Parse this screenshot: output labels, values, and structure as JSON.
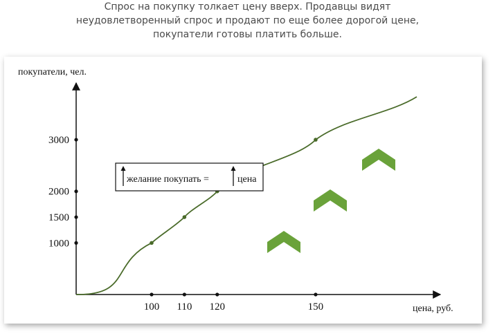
{
  "caption": {
    "line1": "Спрос на покупку толкает цену вверх. Продавцы видят",
    "line2": "неудовлетворенный спрос и продают по еще более дорогой цене,",
    "line3": "покупатели готовы платить больше."
  },
  "chart_data": {
    "type": "line",
    "ylabel": "покупатели, чел.",
    "xlabel": "цена, руб.",
    "x_ticks": [
      100,
      110,
      120,
      150
    ],
    "y_ticks": [
      1000,
      1500,
      2000,
      3000
    ],
    "xlim": [
      77,
      188
    ],
    "ylim": [
      0,
      4100
    ],
    "series": [
      {
        "marked_points": [
          {
            "x": 100,
            "y": 1000
          },
          {
            "x": 110,
            "y": 1500
          },
          {
            "x": 120,
            "y": 2000
          },
          {
            "x": 150,
            "y": 3000
          }
        ]
      }
    ],
    "legend": {
      "text_left": "желание покупать =",
      "text_right": "цена"
    },
    "line_color": "#4a6b2a",
    "arrow_color": "#6aa23a",
    "grid": false
  }
}
